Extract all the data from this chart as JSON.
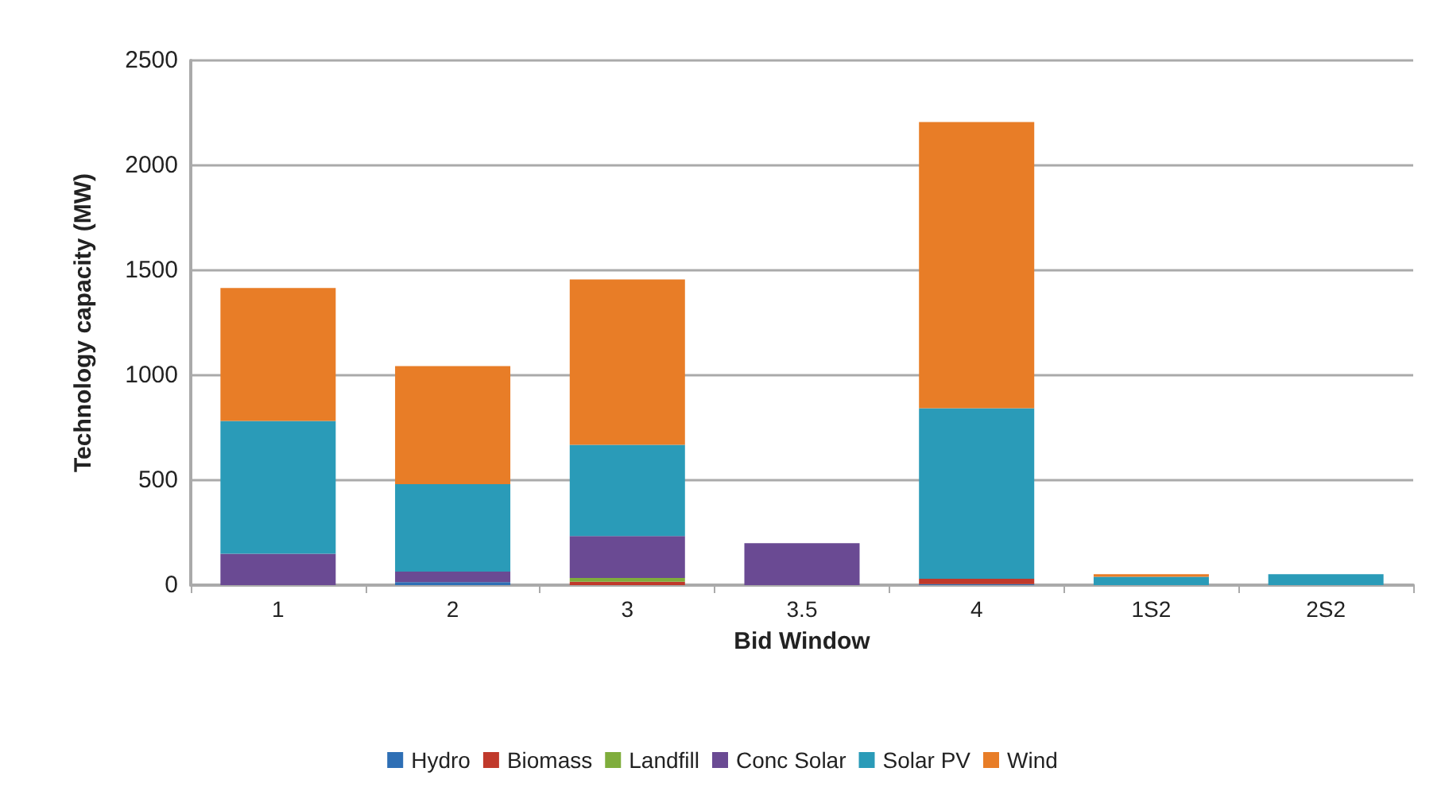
{
  "chart_data": {
    "type": "bar",
    "stacked": true,
    "xlabel": "Bid Window",
    "ylabel": "Technology capacity (MW)",
    "categories": [
      "1",
      "2",
      "3",
      "3.5",
      "4",
      "1S2",
      "2S2"
    ],
    "series": [
      {
        "name": "Hydro",
        "color": "#2e6fb5",
        "values": [
          0,
          14,
          0,
          0,
          5,
          0,
          0
        ]
      },
      {
        "name": "Biomass",
        "color": "#c0392b",
        "values": [
          0,
          0,
          16,
          0,
          25,
          0,
          0
        ]
      },
      {
        "name": "Landfill",
        "color": "#7fad3c",
        "values": [
          0,
          0,
          18,
          0,
          0,
          0,
          0
        ]
      },
      {
        "name": "Conc Solar",
        "color": "#6a4a93",
        "values": [
          150,
          50,
          200,
          200,
          0,
          0,
          0
        ]
      },
      {
        "name": "Solar PV",
        "color": "#2a9bb8",
        "values": [
          632,
          417,
          435,
          0,
          813,
          40,
          52
        ]
      },
      {
        "name": "Wind",
        "color": "#e87d27",
        "values": [
          634,
          563,
          787,
          0,
          1363,
          12,
          0
        ]
      }
    ],
    "ylim": [
      0,
      2500
    ],
    "yticks": [
      0,
      500,
      1000,
      1500,
      2000,
      2500
    ],
    "grid": "y",
    "legend": "bottom"
  }
}
